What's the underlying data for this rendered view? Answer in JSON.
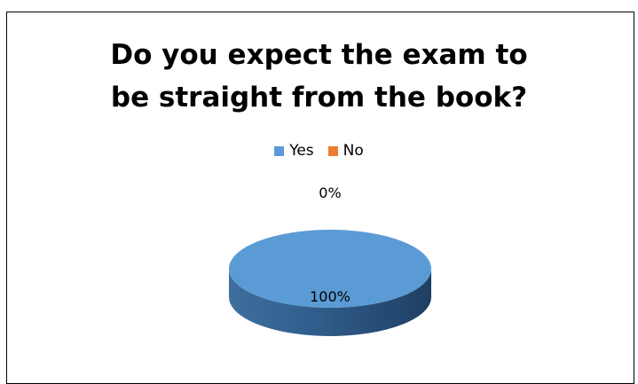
{
  "chart_data": {
    "type": "pie",
    "title": "Do you expect the exam to be straight from the book?",
    "title_lines": [
      "Do you expect the exam to",
      "be straight from the book?"
    ],
    "style": "3d",
    "legend_position": "top",
    "slices": [
      {
        "label": "Yes",
        "value": 100,
        "display": "100%",
        "color": "#5B9BD5"
      },
      {
        "label": "No",
        "value": 0,
        "display": "0%",
        "color": "#ED7D31"
      }
    ]
  }
}
